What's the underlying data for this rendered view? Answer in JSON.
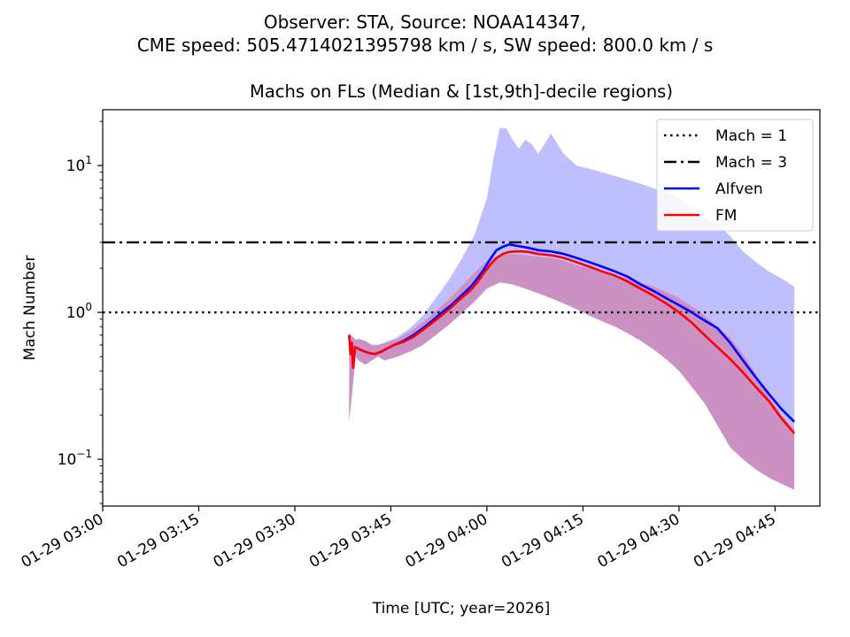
{
  "suptitle": {
    "line1": "Observer: STA, Source: NOAA14347,",
    "line2": "CME speed: 505.4714021395798 km / s, SW speed: 800.0 km / s"
  },
  "colors": {
    "alfven": "#0000ff",
    "fm": "#ff0000",
    "alfven_band": "#bfbfff",
    "fm_band": "#cc91c3",
    "reference": "#000000"
  },
  "chart_data": {
    "type": "line",
    "title": "Machs on FLs (Median & [1st,9th]-decile regions)",
    "xlabel": "Time [UTC; year=2026]",
    "ylabel": "Mach Number",
    "x_unit": "minutes after 01-29 03:00 UTC",
    "xlim": [
      0,
      112
    ],
    "ylim": [
      0.048,
      24
    ],
    "yscale": "log",
    "xticks": [
      {
        "value": 0,
        "label": "01-29 03:00"
      },
      {
        "value": 15,
        "label": "01-29 03:15"
      },
      {
        "value": 30,
        "label": "01-29 03:30"
      },
      {
        "value": 45,
        "label": "01-29 03:45"
      },
      {
        "value": 60,
        "label": "01-29 04:00"
      },
      {
        "value": 75,
        "label": "01-29 04:15"
      },
      {
        "value": 90,
        "label": "01-29 04:30"
      },
      {
        "value": 105,
        "label": "01-29 04:45"
      }
    ],
    "yticks": [
      {
        "value": 0.1,
        "label": "10",
        "exp": "−1"
      },
      {
        "value": 1,
        "label": "10",
        "exp": "0"
      },
      {
        "value": 10,
        "label": "10",
        "exp": "1"
      }
    ],
    "hlines": [
      {
        "name": "Mach = 1",
        "y": 1,
        "style": "dotted"
      },
      {
        "name": "Mach = 3",
        "y": 3,
        "style": "dashdot"
      }
    ],
    "legend": {
      "position": "top-right",
      "entries": [
        "Mach = 1",
        "Mach = 3",
        "Alfven",
        "FM"
      ]
    },
    "series": [
      {
        "name": "Alfven",
        "x": [
          38.5,
          38.7,
          38.9,
          39.1,
          39.4,
          39.8,
          40.5,
          41.5,
          42.5,
          43.5,
          44.5,
          45.5,
          47,
          48.5,
          50,
          51.5,
          53,
          54.5,
          56,
          57.5,
          58.5,
          59.5,
          60.5,
          61.5,
          62.5,
          63.5,
          64.5,
          65.5,
          66.5,
          68,
          70,
          72,
          74,
          76,
          78,
          80,
          82,
          84,
          86,
          88,
          90,
          92,
          94,
          96,
          98,
          100,
          102,
          104,
          106,
          108
        ],
        "y": [
          0.7,
          0.52,
          0.62,
          0.42,
          0.58,
          0.57,
          0.55,
          0.53,
          0.52,
          0.54,
          0.57,
          0.6,
          0.64,
          0.7,
          0.78,
          0.88,
          1.0,
          1.13,
          1.3,
          1.5,
          1.7,
          1.95,
          2.3,
          2.65,
          2.8,
          2.9,
          2.85,
          2.8,
          2.75,
          2.65,
          2.6,
          2.5,
          2.35,
          2.2,
          2.05,
          1.9,
          1.75,
          1.55,
          1.4,
          1.25,
          1.12,
          1.0,
          0.88,
          0.78,
          0.62,
          0.47,
          0.36,
          0.28,
          0.22,
          0.18
        ]
      },
      {
        "name": "FM",
        "x": [
          38.5,
          38.7,
          38.9,
          39.1,
          39.4,
          39.8,
          40.5,
          41.5,
          42.5,
          43.5,
          44.5,
          45.5,
          47,
          48.5,
          50,
          51.5,
          53,
          54.5,
          56,
          57.5,
          58.5,
          59.5,
          60.5,
          61.5,
          62.5,
          63.5,
          64.5,
          65.5,
          66.5,
          68,
          70,
          72,
          74,
          76,
          78,
          80,
          82,
          84,
          86,
          88,
          90,
          92,
          94,
          96,
          98,
          100,
          102,
          104,
          106,
          108
        ],
        "y": [
          0.7,
          0.52,
          0.62,
          0.42,
          0.58,
          0.57,
          0.55,
          0.53,
          0.52,
          0.54,
          0.57,
          0.6,
          0.63,
          0.68,
          0.76,
          0.85,
          0.96,
          1.09,
          1.25,
          1.42,
          1.6,
          1.85,
          2.1,
          2.35,
          2.5,
          2.58,
          2.6,
          2.6,
          2.58,
          2.5,
          2.45,
          2.35,
          2.2,
          2.05,
          1.9,
          1.78,
          1.62,
          1.45,
          1.3,
          1.15,
          1.0,
          0.85,
          0.7,
          0.58,
          0.48,
          0.39,
          0.31,
          0.25,
          0.19,
          0.15
        ]
      },
      {
        "name": "Alfven 1st decile",
        "x": [
          38.5,
          39.5,
          40,
          41,
          42,
          43,
          44,
          46,
          48,
          50,
          52,
          54,
          56,
          58,
          60,
          62,
          64,
          66,
          68,
          70,
          72,
          74,
          76,
          78,
          80,
          82,
          84,
          86,
          88,
          90,
          92,
          94,
          96,
          98,
          100,
          102,
          104,
          106,
          108
        ],
        "y": [
          0.18,
          0.5,
          0.47,
          0.44,
          0.47,
          0.5,
          0.47,
          0.5,
          0.54,
          0.6,
          0.7,
          0.82,
          0.98,
          1.18,
          1.45,
          1.7,
          1.8,
          1.8,
          1.75,
          1.7,
          1.65,
          1.55,
          1.45,
          1.35,
          1.25,
          1.15,
          1.05,
          0.92,
          0.8,
          0.7,
          0.6,
          0.5,
          0.4,
          0.3,
          0.22,
          0.17,
          0.14,
          0.12,
          0.11
        ]
      },
      {
        "name": "Alfven 9th decile",
        "x": [
          38.5,
          39.5,
          40,
          41,
          42,
          43,
          44,
          46,
          48,
          50,
          52,
          54,
          56,
          58,
          60,
          61,
          62,
          63,
          64,
          65,
          66,
          67,
          68,
          69,
          70,
          72,
          74,
          76,
          78,
          80,
          82,
          84,
          86,
          88,
          90,
          92,
          94,
          96,
          98,
          100,
          102,
          104,
          106,
          108
        ],
        "y": [
          0.72,
          0.65,
          0.66,
          0.64,
          0.6,
          0.6,
          0.62,
          0.68,
          0.78,
          0.95,
          1.25,
          1.65,
          2.3,
          3.3,
          6,
          11,
          18,
          18,
          15,
          13,
          15,
          14,
          12,
          14,
          16.5,
          12,
          10,
          9.5,
          9,
          8.5,
          8,
          7.5,
          7,
          6.5,
          6,
          5,
          4.4,
          4,
          3.3,
          2.6,
          2.2,
          1.9,
          1.7,
          1.5
        ]
      },
      {
        "name": "FM 1st decile",
        "x": [
          38.5,
          39.5,
          40,
          41,
          42,
          43,
          44,
          46,
          48,
          50,
          52,
          54,
          56,
          58,
          60,
          62,
          64,
          66,
          68,
          70,
          72,
          74,
          76,
          78,
          80,
          82,
          84,
          86,
          88,
          90,
          92,
          94,
          96,
          98,
          100,
          102,
          104,
          106,
          108
        ],
        "y": [
          0.18,
          0.5,
          0.47,
          0.44,
          0.47,
          0.5,
          0.47,
          0.5,
          0.54,
          0.6,
          0.7,
          0.82,
          0.98,
          1.18,
          1.45,
          1.6,
          1.55,
          1.45,
          1.35,
          1.25,
          1.15,
          1.05,
          0.95,
          0.87,
          0.8,
          0.72,
          0.64,
          0.56,
          0.48,
          0.4,
          0.31,
          0.24,
          0.17,
          0.12,
          0.1,
          0.085,
          0.075,
          0.068,
          0.062
        ]
      },
      {
        "name": "FM 9th decile",
        "x": [
          38.5,
          39.5,
          40,
          41,
          42,
          43,
          44,
          46,
          48,
          50,
          52,
          54,
          56,
          58,
          60,
          62,
          64,
          66,
          68,
          70,
          72,
          74,
          76,
          78,
          80,
          82,
          84,
          86,
          88,
          90,
          92,
          94,
          96,
          98,
          100,
          102,
          104,
          106,
          108
        ],
        "y": [
          0.72,
          0.65,
          0.66,
          0.64,
          0.6,
          0.6,
          0.62,
          0.66,
          0.74,
          0.86,
          1.02,
          1.22,
          1.5,
          1.85,
          2.25,
          2.45,
          2.5,
          2.45,
          2.4,
          2.35,
          2.25,
          2.1,
          2.0,
          1.9,
          1.8,
          1.7,
          1.6,
          1.5,
          1.38,
          1.25,
          1.1,
          0.95,
          0.8,
          0.67,
          0.52,
          0.38,
          0.27,
          0.2,
          0.16
        ]
      }
    ]
  }
}
